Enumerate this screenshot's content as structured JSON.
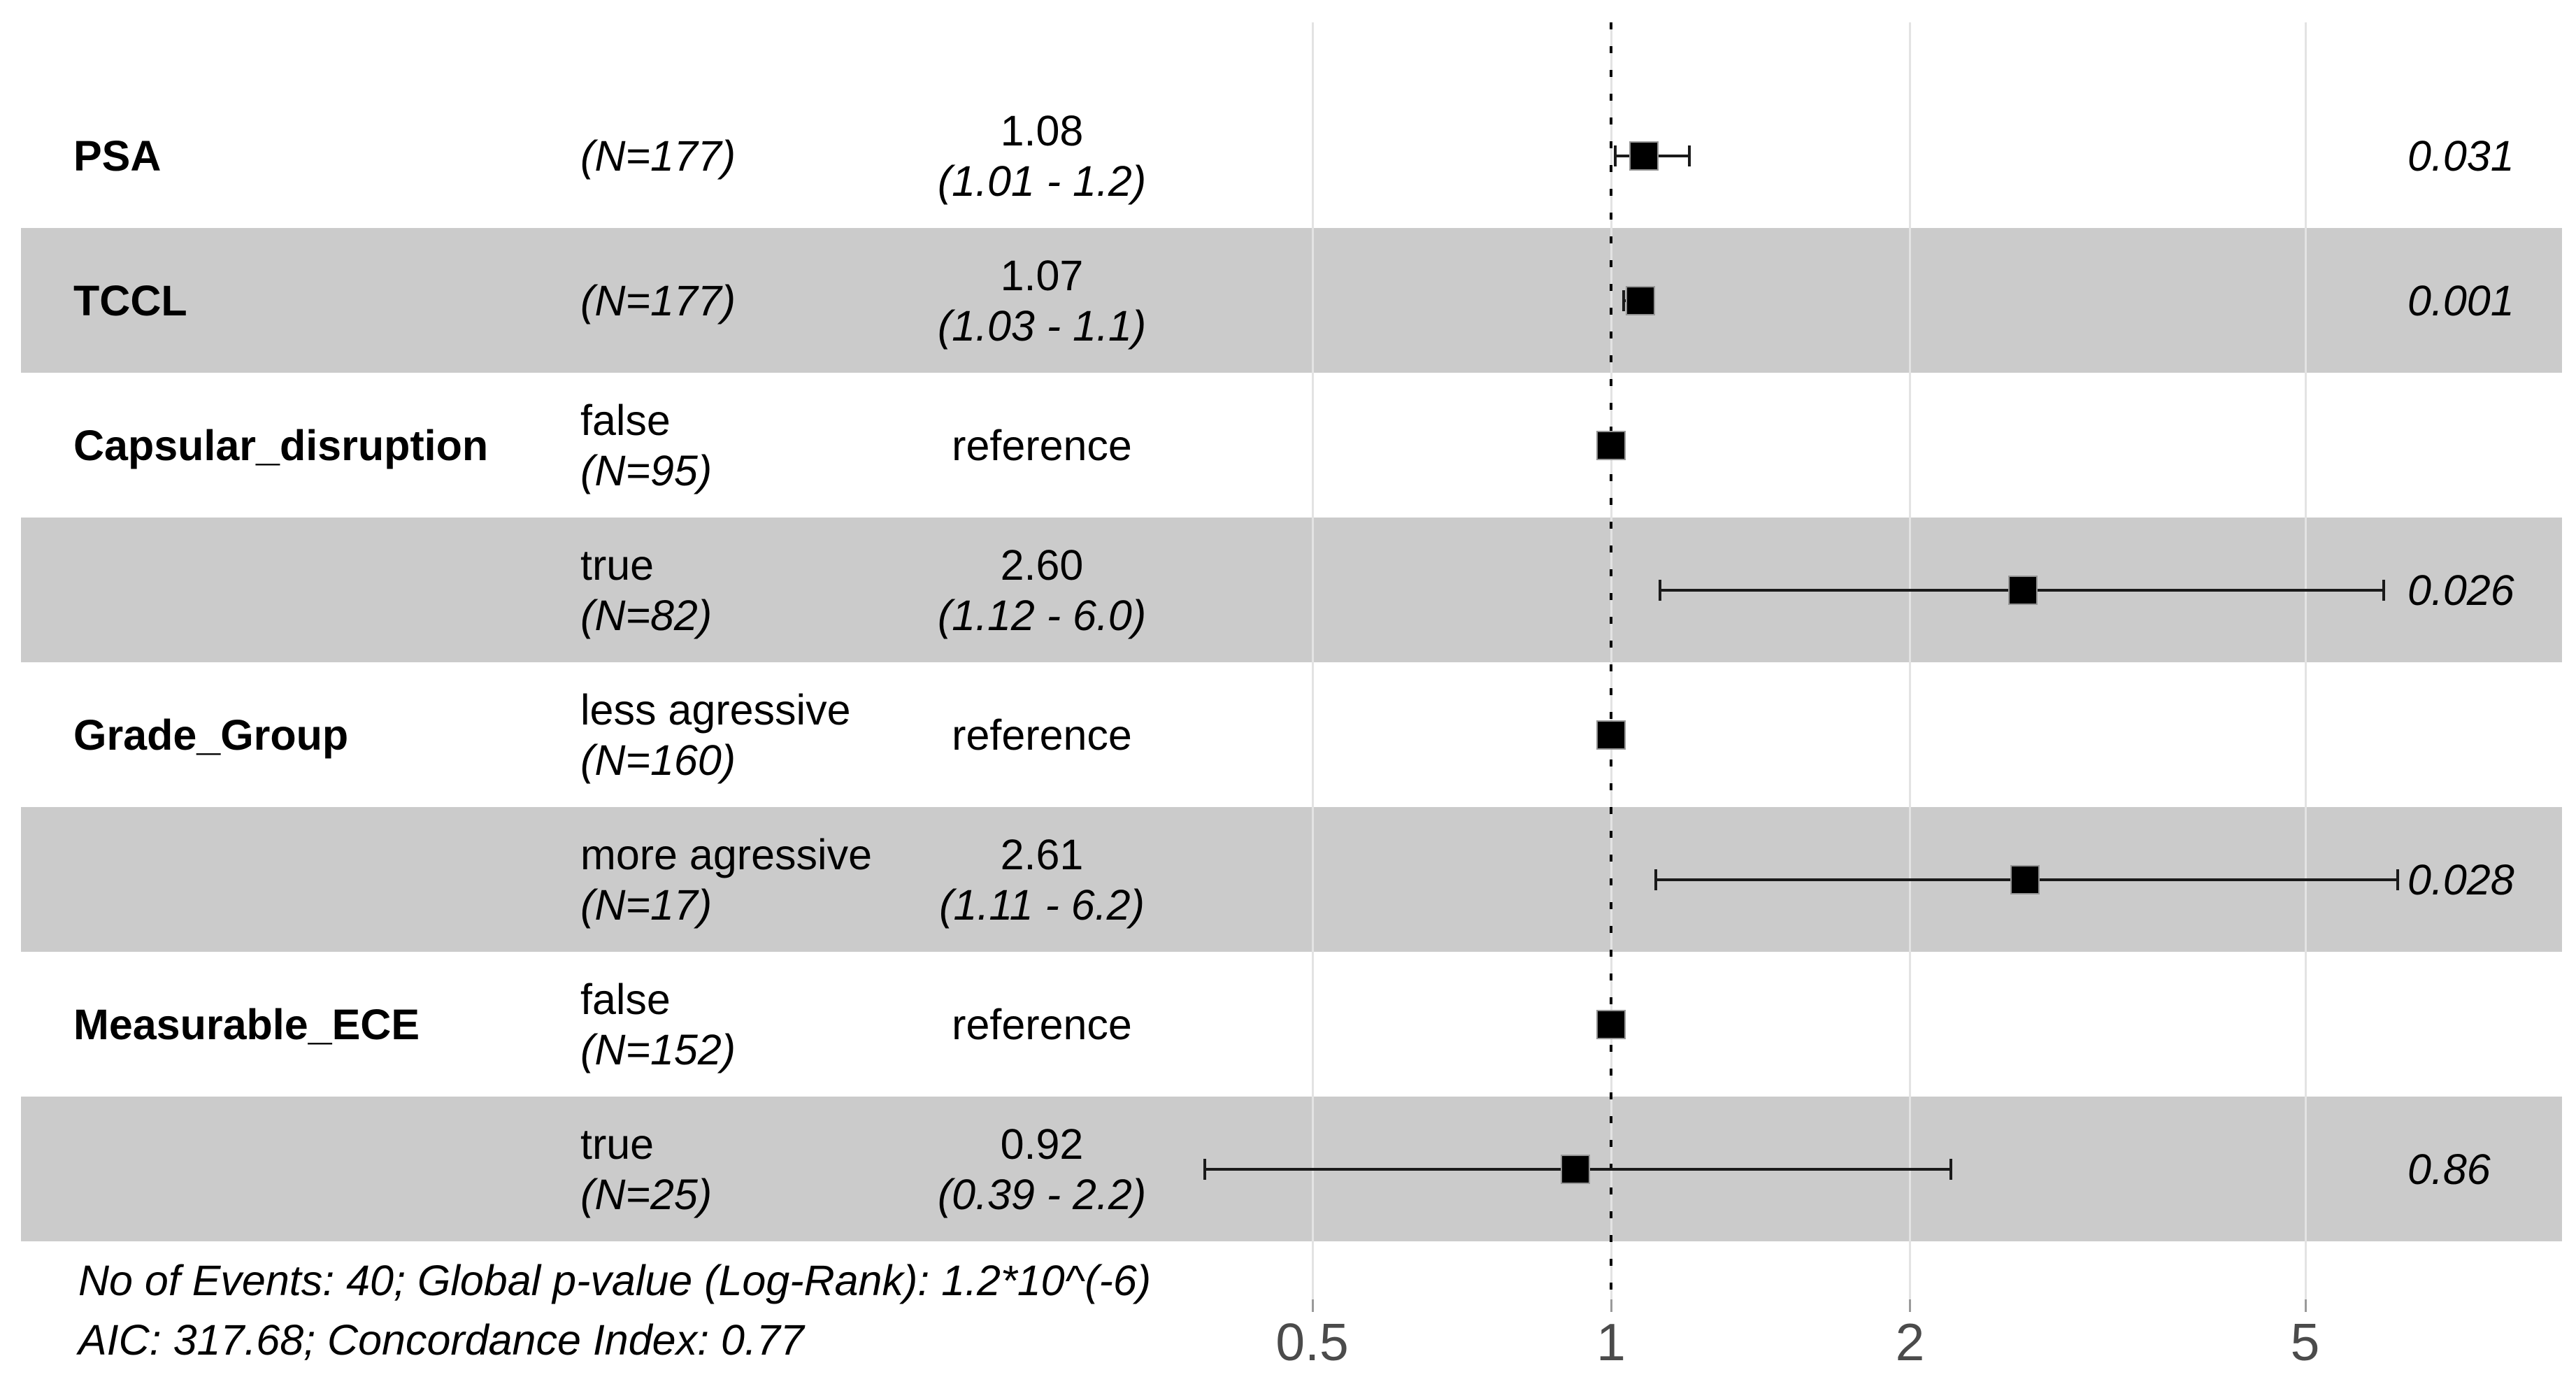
{
  "chart_data": {
    "type": "forest",
    "model": "hazard-ratio-forest-plot",
    "x_axis": {
      "scale": "log10",
      "ticks": [
        0.5,
        1,
        2,
        5
      ],
      "tick_labels": [
        "0.5",
        "1",
        "2",
        "5"
      ],
      "reference_line": 1,
      "grid": true
    },
    "band_color": "#cbcbcb",
    "marker_color": "#000000",
    "rows": [
      {
        "variable": "PSA",
        "level": "",
        "n_label": "(N=177)",
        "estimate_label": "1.08",
        "ci_label": "(1.01 - 1.2)",
        "hr": 1.08,
        "ci_low": 1.01,
        "ci_high": 1.2,
        "p_value": "0.031",
        "reference": false,
        "shaded": false
      },
      {
        "variable": "TCCL",
        "level": "",
        "n_label": "(N=177)",
        "estimate_label": "1.07",
        "ci_label": "(1.03 - 1.1)",
        "hr": 1.07,
        "ci_low": 1.03,
        "ci_high": 1.1,
        "p_value": "0.001",
        "reference": false,
        "shaded": true
      },
      {
        "variable": "Capsular_disruption",
        "level": "false",
        "n_label": "(N=95)",
        "estimate_label": "reference",
        "ci_label": "",
        "hr": 1,
        "ci_low": null,
        "ci_high": null,
        "p_value": "",
        "reference": true,
        "shaded": false
      },
      {
        "variable": "",
        "level": "true",
        "n_label": "(N=82)",
        "estimate_label": "2.60",
        "ci_label": "(1.12 - 6.0)",
        "hr": 2.6,
        "ci_low": 1.12,
        "ci_high": 6.0,
        "p_value": "0.026",
        "reference": false,
        "shaded": true
      },
      {
        "variable": "Grade_Group",
        "level": "less agressive",
        "n_label": "(N=160)",
        "estimate_label": "reference",
        "ci_label": "",
        "hr": 1,
        "ci_low": null,
        "ci_high": null,
        "p_value": "",
        "reference": true,
        "shaded": false
      },
      {
        "variable": "",
        "level": "more agressive",
        "n_label": "(N=17)",
        "estimate_label": "2.61",
        "ci_label": "(1.11 - 6.2)",
        "hr": 2.61,
        "ci_low": 1.11,
        "ci_high": 6.2,
        "p_value": "0.028",
        "reference": false,
        "shaded": true
      },
      {
        "variable": "Measurable_ECE",
        "level": "false",
        "n_label": "(N=152)",
        "estimate_label": "reference",
        "ci_label": "",
        "hr": 1,
        "ci_low": null,
        "ci_high": null,
        "p_value": "",
        "reference": true,
        "shaded": false
      },
      {
        "variable": "",
        "level": "true",
        "n_label": "(N=25)",
        "estimate_label": "0.92",
        "ci_label": "(0.39 - 2.2)",
        "hr": 0.92,
        "ci_low": 0.39,
        "ci_high": 2.2,
        "p_value": "0.86",
        "reference": false,
        "shaded": true
      }
    ],
    "footnotes": [
      "No of Events: 40; Global p-value (Log-Rank): 1.2*10^(-6)",
      "AIC: 317.68; Concordance Index: 0.77"
    ]
  }
}
